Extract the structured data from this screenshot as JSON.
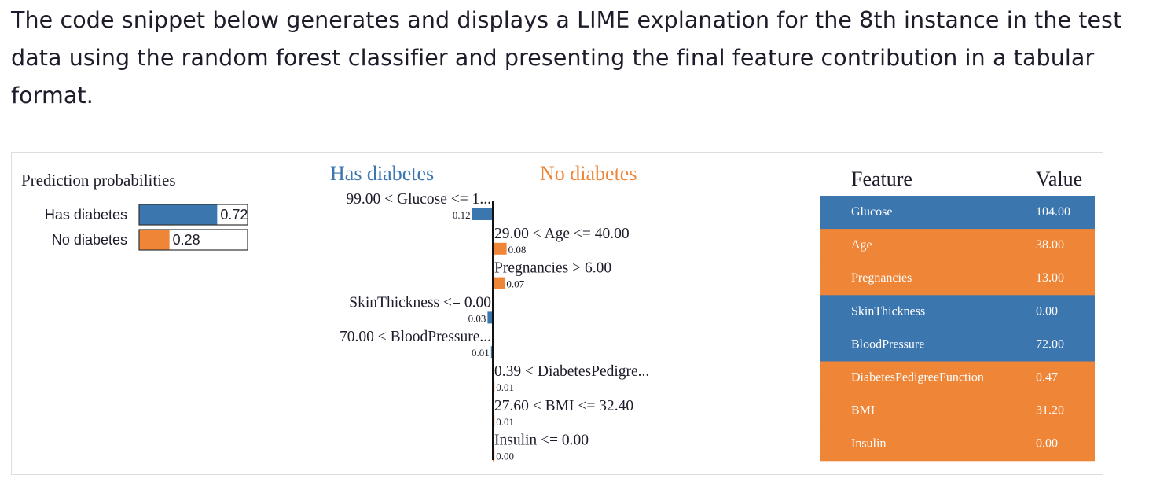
{
  "intro_text": "The code snippet below generates and displays a LIME explanation for the 8th instance in the test data using the random forest classifier and presenting the final feature contribution in a tabular format.",
  "colors": {
    "has": "#3c76af",
    "no": "#ee8537",
    "text": "#1c1c2a"
  },
  "chart_data": [
    {
      "type": "bar",
      "title": "Prediction probabilities",
      "categories": [
        "Has diabetes",
        "No diabetes"
      ],
      "values": [
        0.72,
        0.28
      ],
      "value_labels": [
        "0.72",
        "0.28"
      ],
      "xlim": [
        0,
        1
      ],
      "colors": [
        "#3c76af",
        "#ee8537"
      ]
    },
    {
      "type": "bar",
      "legend_left": "Has diabetes",
      "legend_right": "No diabetes",
      "features": [
        {
          "label": "99.00 < Glucose <= 1...",
          "value": 0.12,
          "value_label": "0.12",
          "class": "Has diabetes"
        },
        {
          "label": "29.00 < Age <= 40.00",
          "value": 0.08,
          "value_label": "0.08",
          "class": "No diabetes"
        },
        {
          "label": "Pregnancies > 6.00",
          "value": 0.07,
          "value_label": "0.07",
          "class": "No diabetes"
        },
        {
          "label": "SkinThickness <= 0.00",
          "value": 0.03,
          "value_label": "0.03",
          "class": "Has diabetes"
        },
        {
          "label": "70.00 < BloodPressure...",
          "value": 0.01,
          "value_label": "0.01",
          "class": "Has diabetes"
        },
        {
          "label": "0.39 < DiabetesPedigre...",
          "value": 0.01,
          "value_label": "0.01",
          "class": "No diabetes"
        },
        {
          "label": "27.60 < BMI <= 32.40",
          "value": 0.01,
          "value_label": "0.01",
          "class": "No diabetes"
        },
        {
          "label": "Insulin <= 0.00",
          "value": 0.0,
          "value_label": "0.00",
          "class": "No diabetes"
        }
      ]
    },
    {
      "type": "table",
      "columns": [
        "Feature",
        "Value"
      ],
      "rows": [
        {
          "feature": "Glucose",
          "value": "104.00",
          "class": "Has diabetes"
        },
        {
          "feature": "Age",
          "value": "38.00",
          "class": "No diabetes"
        },
        {
          "feature": "Pregnancies",
          "value": "13.00",
          "class": "No diabetes"
        },
        {
          "feature": "SkinThickness",
          "value": "0.00",
          "class": "Has diabetes"
        },
        {
          "feature": "BloodPressure",
          "value": "72.00",
          "class": "Has diabetes"
        },
        {
          "feature": "DiabetesPedigreeFunction",
          "value": "0.47",
          "class": "No diabetes"
        },
        {
          "feature": "BMI",
          "value": "31.20",
          "class": "No diabetes"
        },
        {
          "feature": "Insulin",
          "value": "0.00",
          "class": "No diabetes"
        }
      ]
    }
  ]
}
